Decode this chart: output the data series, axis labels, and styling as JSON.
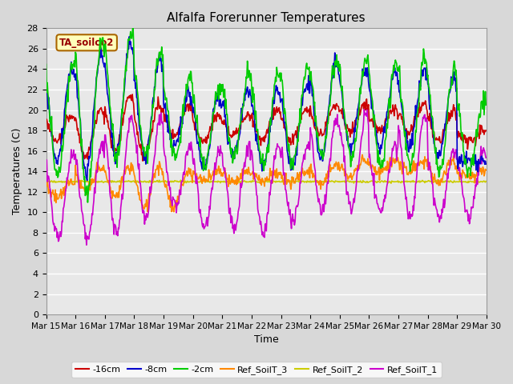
{
  "title": "Alfalfa Forerunner Temperatures",
  "ylabel": "Temperatures (C)",
  "xlabel": "Time",
  "annotation": "TA_soilco2",
  "ylim": [
    0,
    28
  ],
  "figsize": [
    6.4,
    4.8
  ],
  "dpi": 100,
  "bg_color": "#d8d8d8",
  "plot_bg": "#e8e8e8",
  "grid_color": "#ffffff",
  "tick_days": [
    15,
    16,
    17,
    18,
    19,
    20,
    21,
    22,
    23,
    24,
    25,
    26,
    27,
    28,
    29,
    30
  ],
  "legend_labels": [
    "-16cm",
    "-8cm",
    "-2cm",
    "Ref_SoilT_3",
    "Ref_SoilT_2",
    "Ref_SoilT_1"
  ],
  "legend_colors": [
    "#cc0000",
    "#0000cc",
    "#00cc00",
    "#ff8800",
    "#cccc00",
    "#cc00cc"
  ],
  "legend_styles": [
    "-",
    "-",
    "-",
    "-",
    "-",
    "-"
  ],
  "series_colors": {
    "m16": "#cc0000",
    "m8": "#0000cc",
    "m2": "#00cc00",
    "rs3": "#ff8800",
    "rs2": "#cccc00",
    "rs1": "#cc00cc"
  },
  "n_points_per_day": 48,
  "n_days": 15,
  "day_start": 15,
  "m16_peaks": [
    19.5,
    20.0,
    21.5,
    20.5,
    20.5,
    19.5,
    19.5,
    20.0,
    20.0,
    20.5,
    20.5,
    20.0,
    20.5,
    20.0,
    18.0
  ],
  "m16_troughs": [
    17.0,
    15.5,
    16.0,
    15.5,
    17.5,
    17.0,
    17.5,
    17.0,
    17.0,
    17.5,
    18.0,
    18.0,
    18.0,
    17.0,
    17.0
  ],
  "m8_peaks": [
    24.0,
    25.5,
    26.5,
    25.0,
    21.5,
    21.5,
    22.0,
    22.0,
    22.5,
    24.5,
    24.0,
    23.5,
    24.0,
    23.0,
    15.0
  ],
  "m8_troughs": [
    15.0,
    14.0,
    15.5,
    15.5,
    16.5,
    14.5,
    15.5,
    14.5,
    14.5,
    15.5,
    16.5,
    16.5,
    16.5,
    15.5,
    15.0
  ],
  "m2_peaks": [
    24.5,
    27.0,
    27.5,
    25.5,
    23.5,
    22.0,
    23.5,
    23.5,
    24.0,
    25.0,
    25.0,
    24.5,
    25.0,
    24.0,
    21.0
  ],
  "m2_troughs": [
    13.5,
    12.0,
    15.5,
    15.5,
    15.5,
    14.5,
    15.5,
    14.5,
    14.5,
    15.5,
    15.0,
    14.5,
    14.5,
    14.0,
    14.0
  ],
  "rs3_peaks": [
    13.0,
    14.5,
    14.5,
    14.5,
    14.0,
    14.0,
    14.0,
    14.0,
    14.0,
    14.5,
    15.0,
    15.0,
    15.0,
    15.0,
    14.0
  ],
  "rs3_troughs": [
    11.5,
    12.0,
    11.5,
    10.5,
    10.5,
    13.0,
    13.0,
    13.0,
    13.0,
    13.0,
    13.5,
    14.0,
    14.0,
    13.0,
    13.5
  ],
  "rs2_peaks": [
    13.0,
    13.0,
    13.0,
    13.0,
    13.0,
    13.0,
    13.0,
    13.0,
    13.0,
    13.0,
    13.0,
    13.0,
    13.0,
    13.0,
    13.0
  ],
  "rs2_troughs": [
    13.0,
    13.0,
    13.0,
    13.0,
    13.0,
    13.0,
    13.0,
    13.0,
    13.0,
    13.0,
    13.0,
    13.0,
    13.0,
    13.0,
    13.0
  ],
  "rs1_peaks": [
    15.5,
    16.5,
    19.0,
    19.0,
    16.5,
    16.0,
    16.5,
    16.5,
    16.5,
    19.0,
    19.5,
    16.5,
    19.5,
    16.0,
    16.0
  ],
  "rs1_troughs": [
    7.5,
    7.5,
    8.0,
    9.5,
    10.5,
    8.5,
    8.5,
    8.0,
    9.0,
    10.0,
    10.5,
    10.0,
    9.5,
    9.5,
    9.5
  ]
}
